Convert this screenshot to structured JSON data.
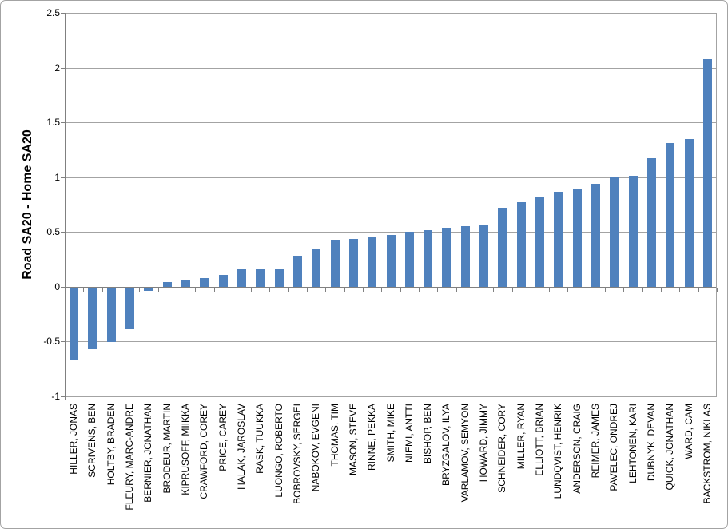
{
  "chart_data": {
    "type": "bar",
    "title": "",
    "ylabel": "Road SA20 - Home SA20",
    "xlabel": "",
    "ylim": [
      -1,
      2.5
    ],
    "ytick_step": 0.5,
    "yticks": [
      "2.5",
      "2",
      "1.5",
      "1",
      "0.5",
      "0",
      "-0.5",
      "-1"
    ],
    "grid": true,
    "legend": false,
    "bar_color": "#4F81BD",
    "axis_color": "#808080",
    "gridline_color": "#A3A3A3",
    "categories": [
      "HILLER, JONAS",
      "SCRIVENS, BEN",
      "HOLTBY, BRADEN",
      "FLEURY, MARC-ANDRE",
      "BERNIER, JONATHAN",
      "BRODEUR, MARTIN",
      "KIPRUSOFF, MIIKKA",
      "CRAWFORD, COREY",
      "PRICE, CAREY",
      "HALAK, JAROSLAV",
      "RASK, TUUKKA",
      "LUONGO, ROBERTO",
      "BOBROVSKY, SERGEI",
      "NABOKOV, EVGENI",
      "THOMAS, TIM",
      "MASON, STEVE",
      "RINNE, PEKKA",
      "SMITH, MIKE",
      "NIEMI, ANTTI",
      "BISHOP, BEN",
      "BRYZGALOV, ILYA",
      "VARLAMOV, SEMYON",
      "HOWARD, JIMMY",
      "SCHNEIDER, CORY",
      "MILLER, RYAN",
      "ELLIOTT, BRIAN",
      "LUNDQVIST, HENRIK",
      "ANDERSON, CRAIG",
      "REIMER, JAMES",
      "PAVELEC, ONDREJ",
      "LEHTONEN, KARI",
      "DUBNYK, DEVAN",
      "QUICK, JONATHAN",
      "WARD, CAM",
      "BACKSTROM, NIKLAS"
    ],
    "values": [
      -0.66,
      -0.56,
      -0.5,
      -0.38,
      -0.03,
      0.04,
      0.06,
      0.08,
      0.11,
      0.16,
      0.16,
      0.16,
      0.28,
      0.34,
      0.43,
      0.44,
      0.45,
      0.47,
      0.5,
      0.52,
      0.54,
      0.55,
      0.57,
      0.72,
      0.77,
      0.82,
      0.87,
      0.89,
      0.94,
      1.0,
      1.01,
      1.17,
      1.31,
      1.35,
      2.08
    ]
  }
}
